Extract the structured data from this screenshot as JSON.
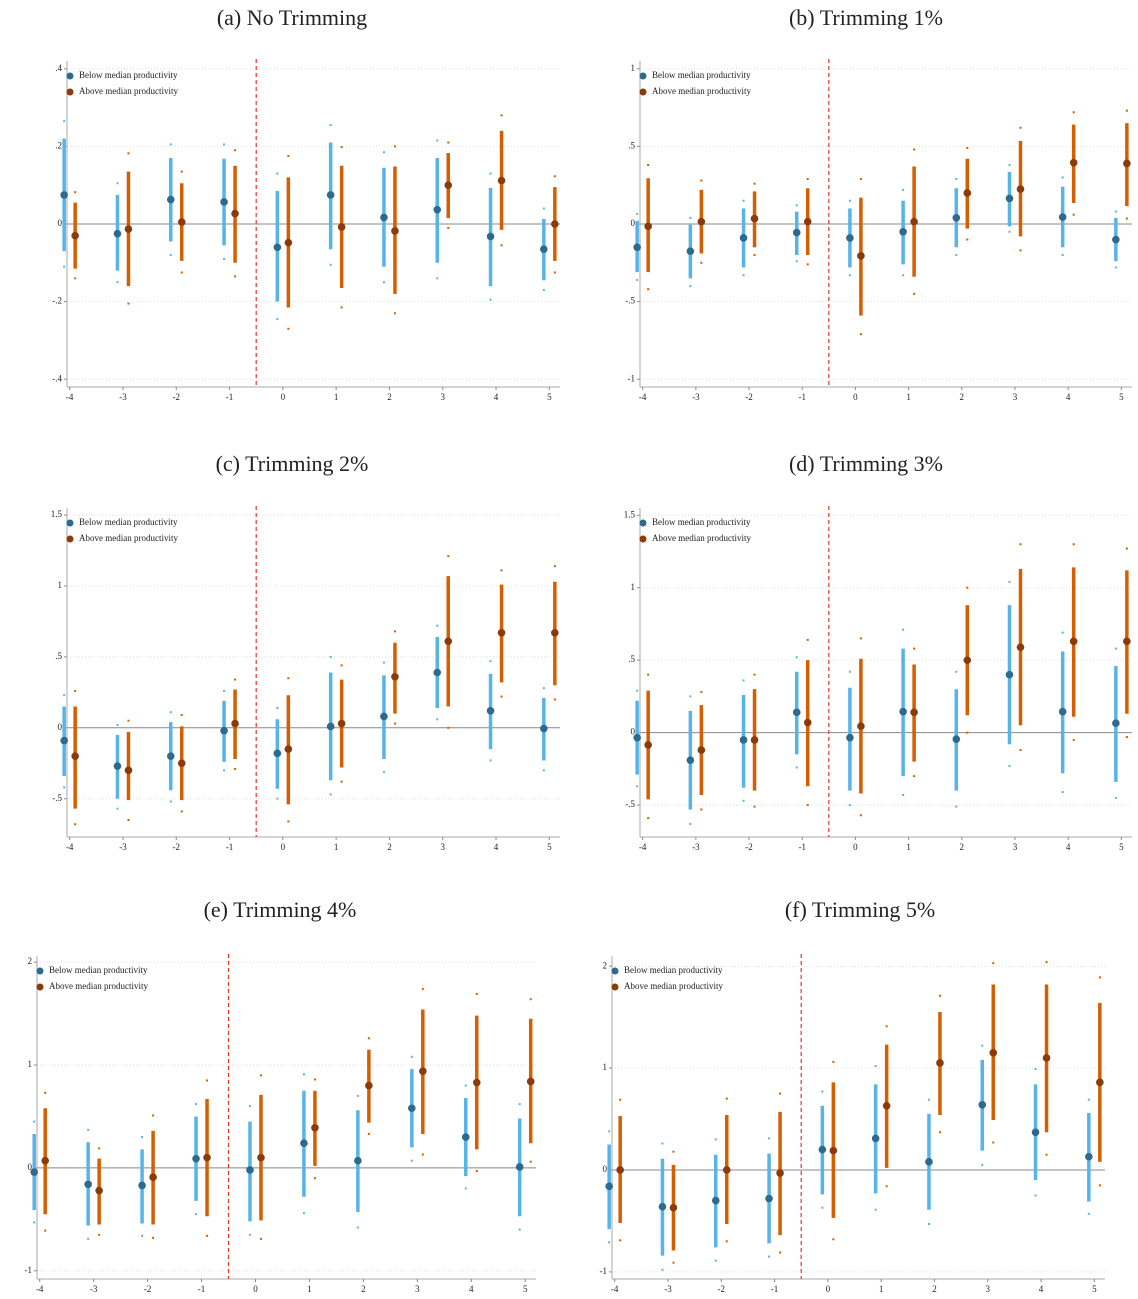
{
  "chart_data": [
    {
      "type": "errorbar",
      "title": "(a) No Trimming",
      "x": [
        -4,
        -3,
        -2,
        -1,
        0,
        1,
        2,
        3,
        4,
        5
      ],
      "xlim": [
        -4.05,
        5.2
      ],
      "ylim": [
        -0.42,
        0.42
      ],
      "yticks": [
        {
          "value": -0.4,
          "label": "-.4"
        },
        {
          "value": -0.2,
          "label": "-.2"
        },
        0,
        {
          "value": 0.2,
          "label": ".2"
        },
        {
          "value": 0.4,
          "label": ".4"
        }
      ],
      "vline": -0.5,
      "grid": true,
      "legend": "upper left",
      "series": [
        {
          "name": "Below median productivity",
          "color": "#56b4e9",
          "point_color": "#2e6a8e",
          "values": [
            0.075,
            -0.025,
            0.063,
            0.057,
            -0.06,
            0.075,
            0.017,
            0.037,
            -0.032,
            -0.065
          ],
          "ci_low": [
            -0.07,
            -0.12,
            -0.045,
            -0.055,
            -0.2,
            -0.065,
            -0.11,
            -0.1,
            -0.16,
            -0.145
          ],
          "ci_high": [
            0.22,
            0.075,
            0.17,
            0.168,
            0.085,
            0.21,
            0.145,
            0.17,
            0.093,
            0.013
          ],
          "outer_low": [
            -0.11,
            -0.15,
            -0.08,
            -0.09,
            -0.245,
            -0.105,
            -0.15,
            -0.14,
            -0.195,
            -0.17
          ],
          "outer_high": [
            0.265,
            0.105,
            0.205,
            0.205,
            0.13,
            0.255,
            0.185,
            0.215,
            0.13,
            0.04
          ]
        },
        {
          "name": "Above median productivity",
          "color": "#d55e00",
          "point_color": "#8b3a0a",
          "values": [
            -0.03,
            -0.013,
            0.005,
            0.027,
            -0.048,
            -0.008,
            -0.018,
            0.1,
            0.112,
            0
          ],
          "ci_low": [
            -0.115,
            -0.16,
            -0.095,
            -0.1,
            -0.215,
            -0.165,
            -0.18,
            0.015,
            -0.015,
            -0.095
          ],
          "ci_high": [
            0.055,
            0.135,
            0.105,
            0.15,
            0.12,
            0.15,
            0.148,
            0.183,
            0.24,
            0.095
          ],
          "outer_low": [
            -0.14,
            -0.205,
            -0.125,
            -0.135,
            -0.27,
            -0.215,
            -0.23,
            -0.01,
            -0.055,
            -0.125
          ],
          "outer_high": [
            0.082,
            0.182,
            0.135,
            0.19,
            0.175,
            0.198,
            0.2,
            0.21,
            0.28,
            0.123
          ]
        }
      ]
    },
    {
      "type": "errorbar",
      "title": "(b) Trimming 1%",
      "x": [
        -4,
        -3,
        -2,
        -1,
        0,
        1,
        2,
        3,
        4,
        5
      ],
      "xlim": [
        -4.05,
        5.2
      ],
      "ylim": [
        -1.05,
        1.05
      ],
      "yticks": [
        -1,
        {
          "value": -0.5,
          "label": "-.5"
        },
        0,
        {
          "value": 0.5,
          "label": ".5"
        },
        1
      ],
      "vline": -0.5,
      "grid": true,
      "legend": "upper left",
      "series": [
        {
          "name": "Below median productivity",
          "color": "#56b4e9",
          "point_color": "#2e6a8e",
          "values": [
            -0.15,
            -0.175,
            -0.09,
            -0.055,
            -0.09,
            -0.05,
            0.04,
            0.165,
            0.045,
            -0.1
          ],
          "ci_low": [
            -0.31,
            -0.35,
            -0.28,
            -0.2,
            -0.28,
            -0.26,
            -0.15,
            -0.015,
            -0.15,
            -0.24
          ],
          "ci_high": [
            0.02,
            -0.005,
            0.1,
            0.08,
            0.1,
            0.15,
            0.23,
            0.335,
            0.24,
            0.04
          ],
          "outer_low": [
            -0.36,
            -0.4,
            -0.33,
            -0.24,
            -0.33,
            -0.33,
            -0.2,
            -0.05,
            -0.2,
            -0.28
          ],
          "outer_high": [
            0.065,
            0.04,
            0.15,
            0.12,
            0.15,
            0.22,
            0.29,
            0.38,
            0.3,
            0.08
          ]
        },
        {
          "name": "Above median productivity",
          "color": "#d55e00",
          "point_color": "#8b3a0a",
          "values": [
            -0.015,
            0.015,
            0.035,
            0.015,
            -0.205,
            0.015,
            0.2,
            0.225,
            0.395,
            0.39
          ],
          "ci_low": [
            -0.31,
            -0.19,
            -0.15,
            -0.2,
            -0.59,
            -0.34,
            -0.03,
            -0.08,
            0.135,
            0.115
          ],
          "ci_high": [
            0.295,
            0.22,
            0.21,
            0.23,
            0.17,
            0.37,
            0.42,
            0.535,
            0.64,
            0.65
          ],
          "outer_low": [
            -0.42,
            -0.25,
            -0.2,
            -0.26,
            -0.71,
            -0.45,
            -0.1,
            -0.17,
            0.06,
            0.035
          ],
          "outer_high": [
            0.38,
            0.28,
            0.26,
            0.29,
            0.29,
            0.48,
            0.49,
            0.62,
            0.72,
            0.73
          ]
        }
      ]
    },
    {
      "type": "errorbar",
      "title": "(c) Trimming 2%",
      "x": [
        -4,
        -3,
        -2,
        -1,
        0,
        1,
        2,
        3,
        4,
        5
      ],
      "xlim": [
        -4.05,
        5.2
      ],
      "ylim": [
        -0.77,
        1.55
      ],
      "yticks": [
        {
          "value": -0.5,
          "label": "-.5"
        },
        0,
        {
          "value": 0.5,
          "label": ".5"
        },
        1,
        1.5
      ],
      "vline": -0.5,
      "grid": true,
      "legend": "upper left",
      "series": [
        {
          "name": "Below median productivity",
          "color": "#56b4e9",
          "point_color": "#2e6a8e",
          "values": [
            -0.09,
            -0.27,
            -0.2,
            -0.02,
            -0.18,
            0.01,
            0.08,
            0.39,
            0.12,
            -0.005
          ],
          "ci_low": [
            -0.34,
            -0.5,
            -0.44,
            -0.24,
            -0.43,
            -0.37,
            -0.22,
            0.14,
            -0.15,
            -0.23
          ],
          "ci_high": [
            0.15,
            -0.05,
            0.04,
            0.19,
            0.06,
            0.39,
            0.37,
            0.64,
            0.38,
            0.21
          ],
          "outer_low": [
            -0.42,
            -0.57,
            -0.52,
            -0.3,
            -0.5,
            -0.47,
            -0.31,
            0.06,
            -0.23,
            -0.3
          ],
          "outer_high": [
            0.23,
            0.02,
            0.11,
            0.26,
            0.14,
            0.5,
            0.46,
            0.72,
            0.47,
            0.28
          ]
        },
        {
          "name": "Above median productivity",
          "color": "#d55e00",
          "point_color": "#8b3a0a",
          "values": [
            -0.2,
            -0.3,
            -0.25,
            0.03,
            -0.15,
            0.03,
            0.36,
            0.61,
            0.67,
            0.67
          ],
          "ci_low": [
            -0.57,
            -0.51,
            -0.51,
            -0.22,
            -0.54,
            -0.28,
            0.1,
            0.15,
            0.32,
            0.3
          ],
          "ci_high": [
            0.15,
            -0.03,
            0.01,
            0.27,
            0.23,
            0.34,
            0.6,
            1.07,
            1.01,
            1.03
          ],
          "outer_low": [
            -0.68,
            -0.65,
            -0.59,
            -0.29,
            -0.66,
            -0.38,
            0.03,
            0,
            0.22,
            0.2
          ],
          "outer_high": [
            0.26,
            0.05,
            0.09,
            0.34,
            0.35,
            0.44,
            0.68,
            1.21,
            1.11,
            1.14
          ]
        }
      ]
    },
    {
      "type": "errorbar",
      "title": "(d) Trimming 3%",
      "x": [
        -4,
        -3,
        -2,
        -1,
        0,
        1,
        2,
        3,
        4,
        5
      ],
      "xlim": [
        -4.05,
        5.2
      ],
      "ylim": [
        -0.72,
        1.55
      ],
      "yticks": [
        {
          "value": -0.5,
          "label": "-.5"
        },
        0,
        {
          "value": 0.5,
          "label": ".5"
        },
        1,
        1.5
      ],
      "vline": -0.5,
      "grid": true,
      "legend": "upper left",
      "series": [
        {
          "name": "Below median productivity",
          "color": "#56b4e9",
          "point_color": "#2e6a8e",
          "values": [
            -0.035,
            -0.19,
            -0.05,
            0.14,
            -0.035,
            0.145,
            -0.045,
            0.4,
            0.145,
            0.065
          ],
          "ci_low": [
            -0.29,
            -0.53,
            -0.38,
            -0.15,
            -0.4,
            -0.3,
            -0.4,
            -0.08,
            -0.28,
            -0.34
          ],
          "ci_high": [
            0.22,
            0.15,
            0.26,
            0.42,
            0.31,
            0.58,
            0.3,
            0.88,
            0.56,
            0.46
          ],
          "outer_low": [
            -0.37,
            -0.63,
            -0.47,
            -0.24,
            -0.5,
            -0.43,
            -0.51,
            -0.23,
            -0.41,
            -0.45
          ],
          "outer_high": [
            0.29,
            0.25,
            0.36,
            0.52,
            0.42,
            0.71,
            0.42,
            1.04,
            0.69,
            0.58
          ]
        },
        {
          "name": "Above median productivity",
          "color": "#d55e00",
          "point_color": "#8b3a0a",
          "values": [
            -0.085,
            -0.12,
            -0.05,
            0.07,
            0.045,
            0.14,
            0.5,
            0.59,
            0.63,
            0.63
          ],
          "ci_low": [
            -0.46,
            -0.43,
            -0.4,
            -0.37,
            -0.42,
            -0.2,
            0.12,
            0.05,
            0.11,
            0.13
          ],
          "ci_high": [
            0.29,
            0.19,
            0.3,
            0.5,
            0.51,
            0.47,
            0.88,
            1.13,
            1.14,
            1.12
          ],
          "outer_low": [
            -0.59,
            -0.53,
            -0.51,
            -0.5,
            -0.57,
            -0.3,
            0,
            -0.12,
            -0.05,
            -0.03
          ],
          "outer_high": [
            0.4,
            0.28,
            0.4,
            0.64,
            0.65,
            0.58,
            1,
            1.3,
            1.3,
            1.27
          ]
        }
      ]
    },
    {
      "type": "errorbar",
      "title": "(e) Trimming 4%",
      "x": [
        -4,
        -3,
        -2,
        -1,
        0,
        1,
        2,
        3,
        4,
        5
      ],
      "xlim": [
        -4.05,
        5.2
      ],
      "ylim": [
        -1.08,
        2.06
      ],
      "yticks": [
        -1,
        0,
        1,
        2
      ],
      "vline": -0.5,
      "grid": true,
      "legend": "upper left",
      "series": [
        {
          "name": "Below median productivity",
          "color": "#56b4e9",
          "point_color": "#2e6a8e",
          "values": [
            -0.04,
            -0.16,
            -0.17,
            0.09,
            -0.02,
            0.24,
            0.07,
            0.58,
            0.3,
            0.01
          ],
          "ci_low": [
            -0.41,
            -0.56,
            -0.54,
            -0.32,
            -0.52,
            -0.28,
            -0.43,
            0.2,
            -0.08,
            -0.47
          ],
          "ci_high": [
            0.33,
            0.25,
            0.18,
            0.5,
            0.45,
            0.75,
            0.56,
            0.96,
            0.68,
            0.48
          ],
          "outer_low": [
            -0.53,
            -0.69,
            -0.66,
            -0.45,
            -0.65,
            -0.44,
            -0.58,
            0.07,
            -0.2,
            -0.6
          ],
          "outer_high": [
            0.45,
            0.37,
            0.3,
            0.62,
            0.6,
            0.91,
            0.7,
            1.08,
            0.8,
            0.62
          ]
        },
        {
          "name": "Above median productivity",
          "color": "#d55e00",
          "point_color": "#8b3a0a",
          "values": [
            0.07,
            -0.22,
            -0.09,
            0.1,
            0.1,
            0.39,
            0.8,
            0.94,
            0.83,
            0.84
          ],
          "ci_low": [
            -0.45,
            -0.55,
            -0.55,
            -0.47,
            -0.51,
            0.02,
            0.44,
            0.33,
            0.18,
            0.24
          ],
          "ci_high": [
            0.58,
            0.09,
            0.36,
            0.67,
            0.71,
            0.75,
            1.15,
            1.54,
            1.48,
            1.45
          ],
          "outer_low": [
            -0.61,
            -0.65,
            -0.68,
            -0.66,
            -0.69,
            -0.1,
            0.33,
            0.13,
            -0.03,
            0.06
          ],
          "outer_high": [
            0.73,
            0.19,
            0.51,
            0.85,
            0.9,
            0.86,
            1.26,
            1.74,
            1.69,
            1.64
          ]
        }
      ]
    },
    {
      "type": "errorbar",
      "title": "(f) Trimming 5%",
      "x": [
        -4,
        -3,
        -2,
        -1,
        0,
        1,
        2,
        3,
        4,
        5
      ],
      "xlim": [
        -4.05,
        5.2
      ],
      "ylim": [
        -1.07,
        2.1
      ],
      "yticks": [
        -1,
        0,
        1,
        2
      ],
      "vline": -0.5,
      "grid": true,
      "legend": "upper left",
      "series": [
        {
          "name": "Below median productivity",
          "color": "#56b4e9",
          "point_color": "#2e6a8e",
          "values": [
            -0.16,
            -0.36,
            -0.3,
            -0.28,
            0.2,
            0.31,
            0.08,
            0.64,
            0.37,
            0.13
          ],
          "ci_low": [
            -0.58,
            -0.84,
            -0.76,
            -0.72,
            -0.24,
            -0.23,
            -0.39,
            0.19,
            -0.1,
            -0.31
          ],
          "ci_high": [
            0.25,
            0.11,
            0.15,
            0.16,
            0.63,
            0.84,
            0.55,
            1.08,
            0.84,
            0.56
          ],
          "outer_low": [
            -0.71,
            -0.98,
            -0.89,
            -0.85,
            -0.37,
            -0.39,
            -0.53,
            0.05,
            -0.25,
            -0.43
          ],
          "outer_high": [
            0.38,
            0.26,
            0.3,
            0.31,
            0.77,
            1.02,
            0.69,
            1.22,
            0.99,
            0.69
          ]
        },
        {
          "name": "Above median productivity",
          "color": "#d55e00",
          "point_color": "#8b3a0a",
          "values": [
            0,
            -0.37,
            0,
            -0.03,
            0.19,
            0.63,
            1.05,
            1.15,
            1.1,
            0.86
          ],
          "ci_low": [
            -0.52,
            -0.79,
            -0.53,
            -0.64,
            -0.47,
            0.02,
            0.54,
            0.49,
            0.37,
            0.08
          ],
          "ci_high": [
            0.53,
            0.05,
            0.54,
            0.57,
            0.86,
            1.23,
            1.55,
            1.82,
            1.82,
            1.64
          ],
          "outer_low": [
            -0.69,
            -0.91,
            -0.7,
            -0.81,
            -0.68,
            -0.16,
            0.37,
            0.27,
            0.15,
            -0.15
          ],
          "outer_high": [
            0.69,
            0.18,
            0.7,
            0.75,
            1.06,
            1.41,
            1.71,
            2.03,
            2.04,
            1.89
          ]
        }
      ]
    }
  ]
}
